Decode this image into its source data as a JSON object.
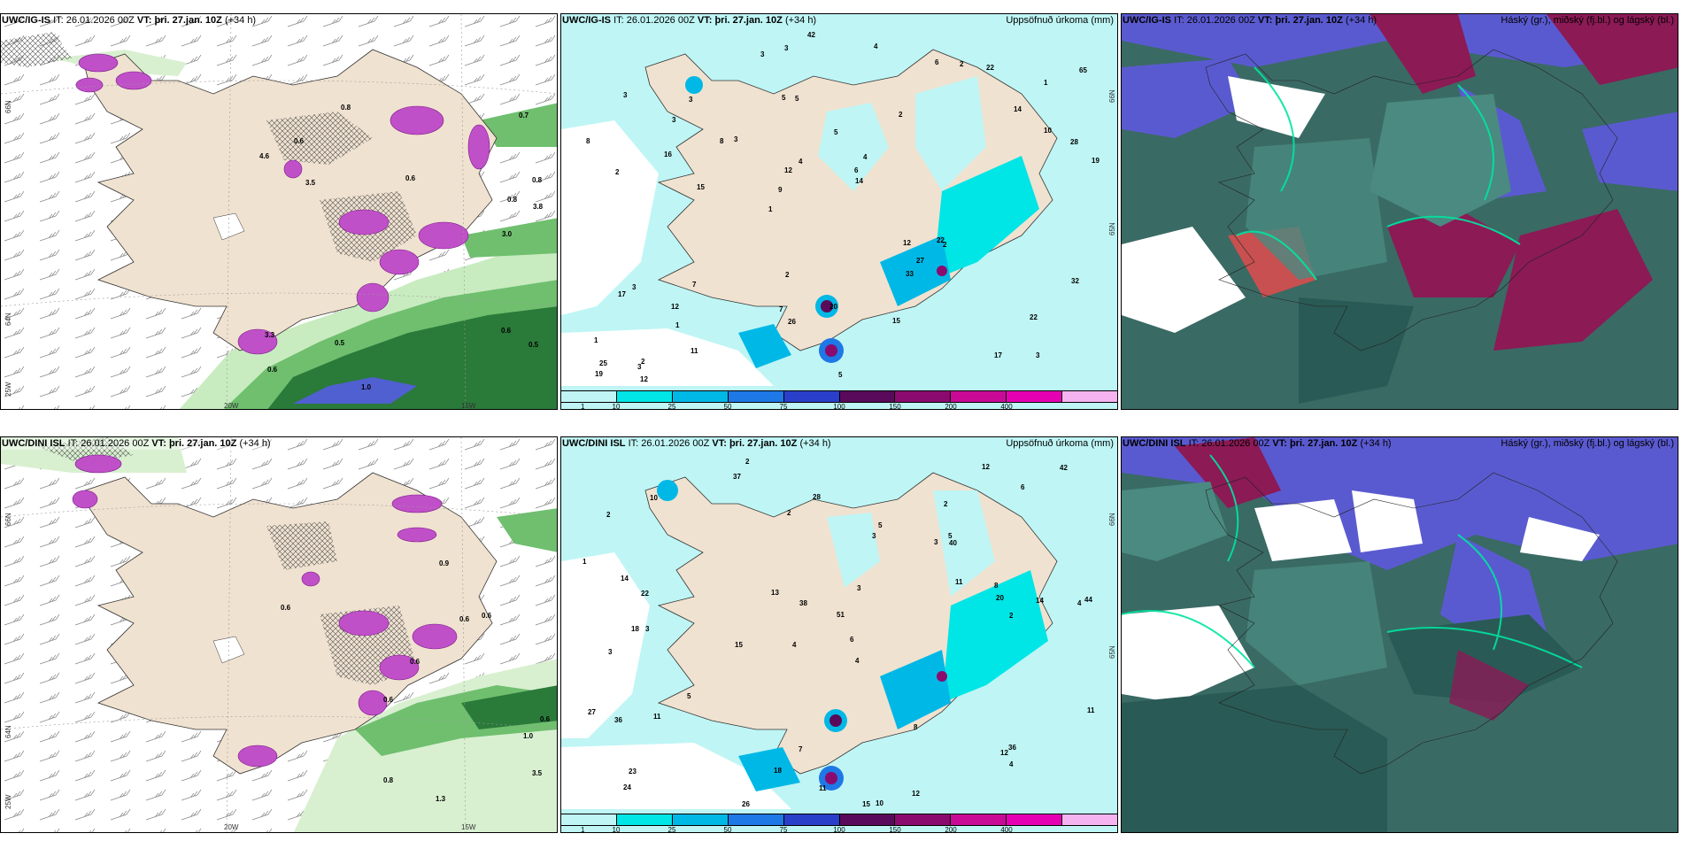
{
  "panels": {
    "p1": {
      "model": "UWC/IG-IS",
      "it_label": "IT:",
      "it": "26.01.2026 00Z",
      "vt_label": "VT:",
      "vt": "þri. 27.jan. 10Z",
      "lead": "(+34 h)",
      "right_title": ""
    },
    "p2": {
      "model": "UWC/IG-IS",
      "it_label": "IT:",
      "it": "26.01.2026 00Z",
      "vt_label": "VT:",
      "vt": "þri. 27.jan. 10Z",
      "lead": "(+34 h)",
      "right_title": "Uppsöfnuð úrkoma (mm)"
    },
    "p3": {
      "model": "UWC/IG-IS",
      "it_label": "IT:",
      "it": "26.01.2026 00Z",
      "vt_label": "VT:",
      "vt": "þri. 27.jan. 10Z",
      "lead": "(+34 h)",
      "right_title": "Háský (gr.), miðský (fj.bl.) og lágský (bl.)"
    },
    "p4": {
      "model": "UWC/DINI ISL",
      "it_label": "IT:",
      "it": "26.01.2026 00Z",
      "vt_label": "VT:",
      "vt": "þri. 27.jan. 10Z",
      "lead": "(+34 h)",
      "right_title": ""
    },
    "p5": {
      "model": "UWC/DINI ISL",
      "it_label": "IT:",
      "it": "26.01.2026 00Z",
      "vt_label": "VT:",
      "vt": "þri. 27.jan. 10Z",
      "lead": "(+34 h)",
      "right_title": "Uppsöfnuð úrkoma (mm)"
    },
    "p6": {
      "model": "UWC/DINI ISL",
      "it_label": "IT:",
      "it": "26.01.2026 00Z",
      "vt_label": "VT:",
      "vt": "þri. 27.jan. 10Z",
      "lead": "(+34 h)",
      "right_title": "Háský (gr.), miðský (fj.bl.) og lágský (bl.)"
    }
  },
  "grid_labels": {
    "lat66": "66N",
    "lat64": "64N",
    "lat65": "65N",
    "lon20": "20W",
    "lon15": "15W",
    "lon25": "25W"
  },
  "colorbar": {
    "labels": [
      "1",
      "10",
      "25",
      "50",
      "75",
      "100",
      "150",
      "200",
      "400"
    ],
    "colors": [
      "#bff5f5",
      "#00e5e5",
      "#00b8e6",
      "#1e78e6",
      "#2a3fc9",
      "#5a0a5a",
      "#8b0a6e",
      "#c80a96",
      "#e600b4",
      "#f5b4f0"
    ]
  },
  "colors": {
    "land": "#f0e2d0",
    "sea_precip": "#bff5f5",
    "cloud_low": "#3a6a64",
    "cloud_mid": "#5a5ad0",
    "cloud_high": "#8b1a55",
    "green_precip": "#2a7a3a",
    "magenta_snow": "#c050c8"
  },
  "precip_numbers_top": [
    "3",
    "2",
    "1",
    "1",
    "2",
    "2",
    "5",
    "5",
    "3",
    "3",
    "1",
    "1",
    "5",
    "4",
    "2",
    "3",
    "3",
    "19",
    "12",
    "10",
    "9",
    "7",
    "12",
    "3",
    "6",
    "7",
    "17",
    "22",
    "22",
    "5",
    "8",
    "16",
    "33",
    "11",
    "28",
    "6",
    "25",
    "26",
    "14",
    "17",
    "14",
    "65",
    "27",
    "15",
    "12",
    "12",
    "19",
    "20",
    "22",
    "42",
    "15",
    "8",
    "3",
    "2",
    "3",
    "4",
    "3",
    "4",
    "32",
    "2"
  ],
  "precip_numbers_bottom": [
    "2",
    "2",
    "4",
    "4",
    "4",
    "3",
    "2",
    "3",
    "3",
    "3",
    "51",
    "24",
    "37",
    "15",
    "15",
    "10",
    "7",
    "12",
    "11",
    "5",
    "22",
    "18",
    "44",
    "14",
    "27",
    "14",
    "38",
    "20",
    "36",
    "36",
    "12",
    "5",
    "11",
    "13",
    "8",
    "11",
    "8",
    "18",
    "42",
    "28",
    "23",
    "26",
    "12",
    "10",
    "11",
    "40",
    "4",
    "5",
    "1",
    "6",
    "2",
    "2",
    "3",
    "6"
  ],
  "wind_numbers_top": [
    "0.6",
    "0.8",
    "0.5",
    "0.6",
    "0.6",
    "0.8",
    "0.8",
    "0.5",
    "0.7",
    "3.5",
    "3.8",
    "4.6",
    "3.0",
    "1.0",
    "3.3",
    "0.6"
  ],
  "wind_numbers_bottom": [
    "0.6",
    "0.6",
    "0.6",
    "1.0",
    "0.8",
    "0.9",
    "0.6",
    "0.6",
    "3.5",
    "1.3",
    "0.6"
  ]
}
